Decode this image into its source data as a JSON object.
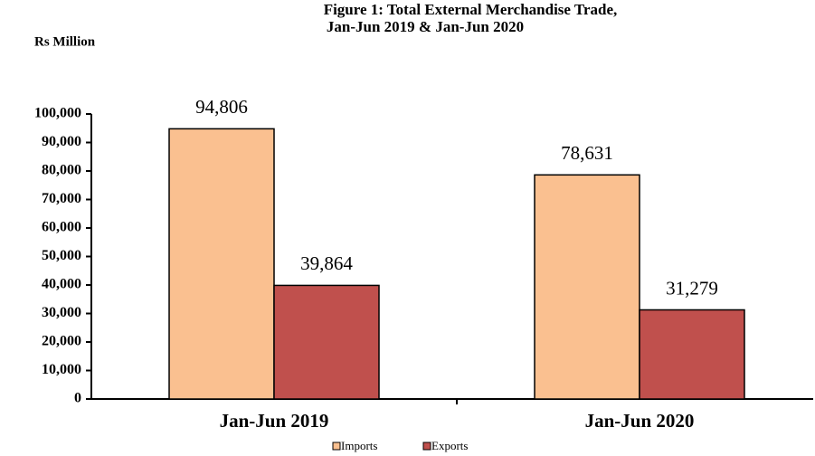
{
  "chart_data": {
    "type": "bar",
    "title": "Figure 1: Total  External Merchandise Trade,",
    "subtitle": "Jan-Jun 2019 & Jan-Jun 2020",
    "y_label": "Rs Million",
    "categories": [
      "Jan-Jun 2019",
      "Jan-Jun 2020"
    ],
    "series": [
      {
        "name": "Imports",
        "color": "#fac090",
        "values": [
          94806,
          78631
        ],
        "value_labels": [
          "94,806",
          "78,631"
        ]
      },
      {
        "name": "Exports",
        "color": "#c0504d",
        "values": [
          39864,
          31279
        ],
        "value_labels": [
          "39,864",
          "31,279"
        ]
      }
    ],
    "ylim": [
      0,
      100000
    ],
    "yticks": [
      0,
      {
        "value": 10000,
        "label": "10,000"
      },
      {
        "value": 20000,
        "label": "20,000"
      },
      {
        "value": 30000,
        "label": "30,000"
      },
      {
        "value": 40000,
        "label": "40,000"
      },
      {
        "value": 50000,
        "label": "50,000"
      },
      {
        "value": 60000,
        "label": "60,000"
      },
      {
        "value": 70000,
        "label": "70,000"
      },
      {
        "value": 80000,
        "label": "80,000"
      },
      {
        "value": 90000,
        "label": "90,000"
      },
      {
        "value": 100000,
        "label": "100,000"
      }
    ],
    "grid": false,
    "legend": "bottom"
  }
}
